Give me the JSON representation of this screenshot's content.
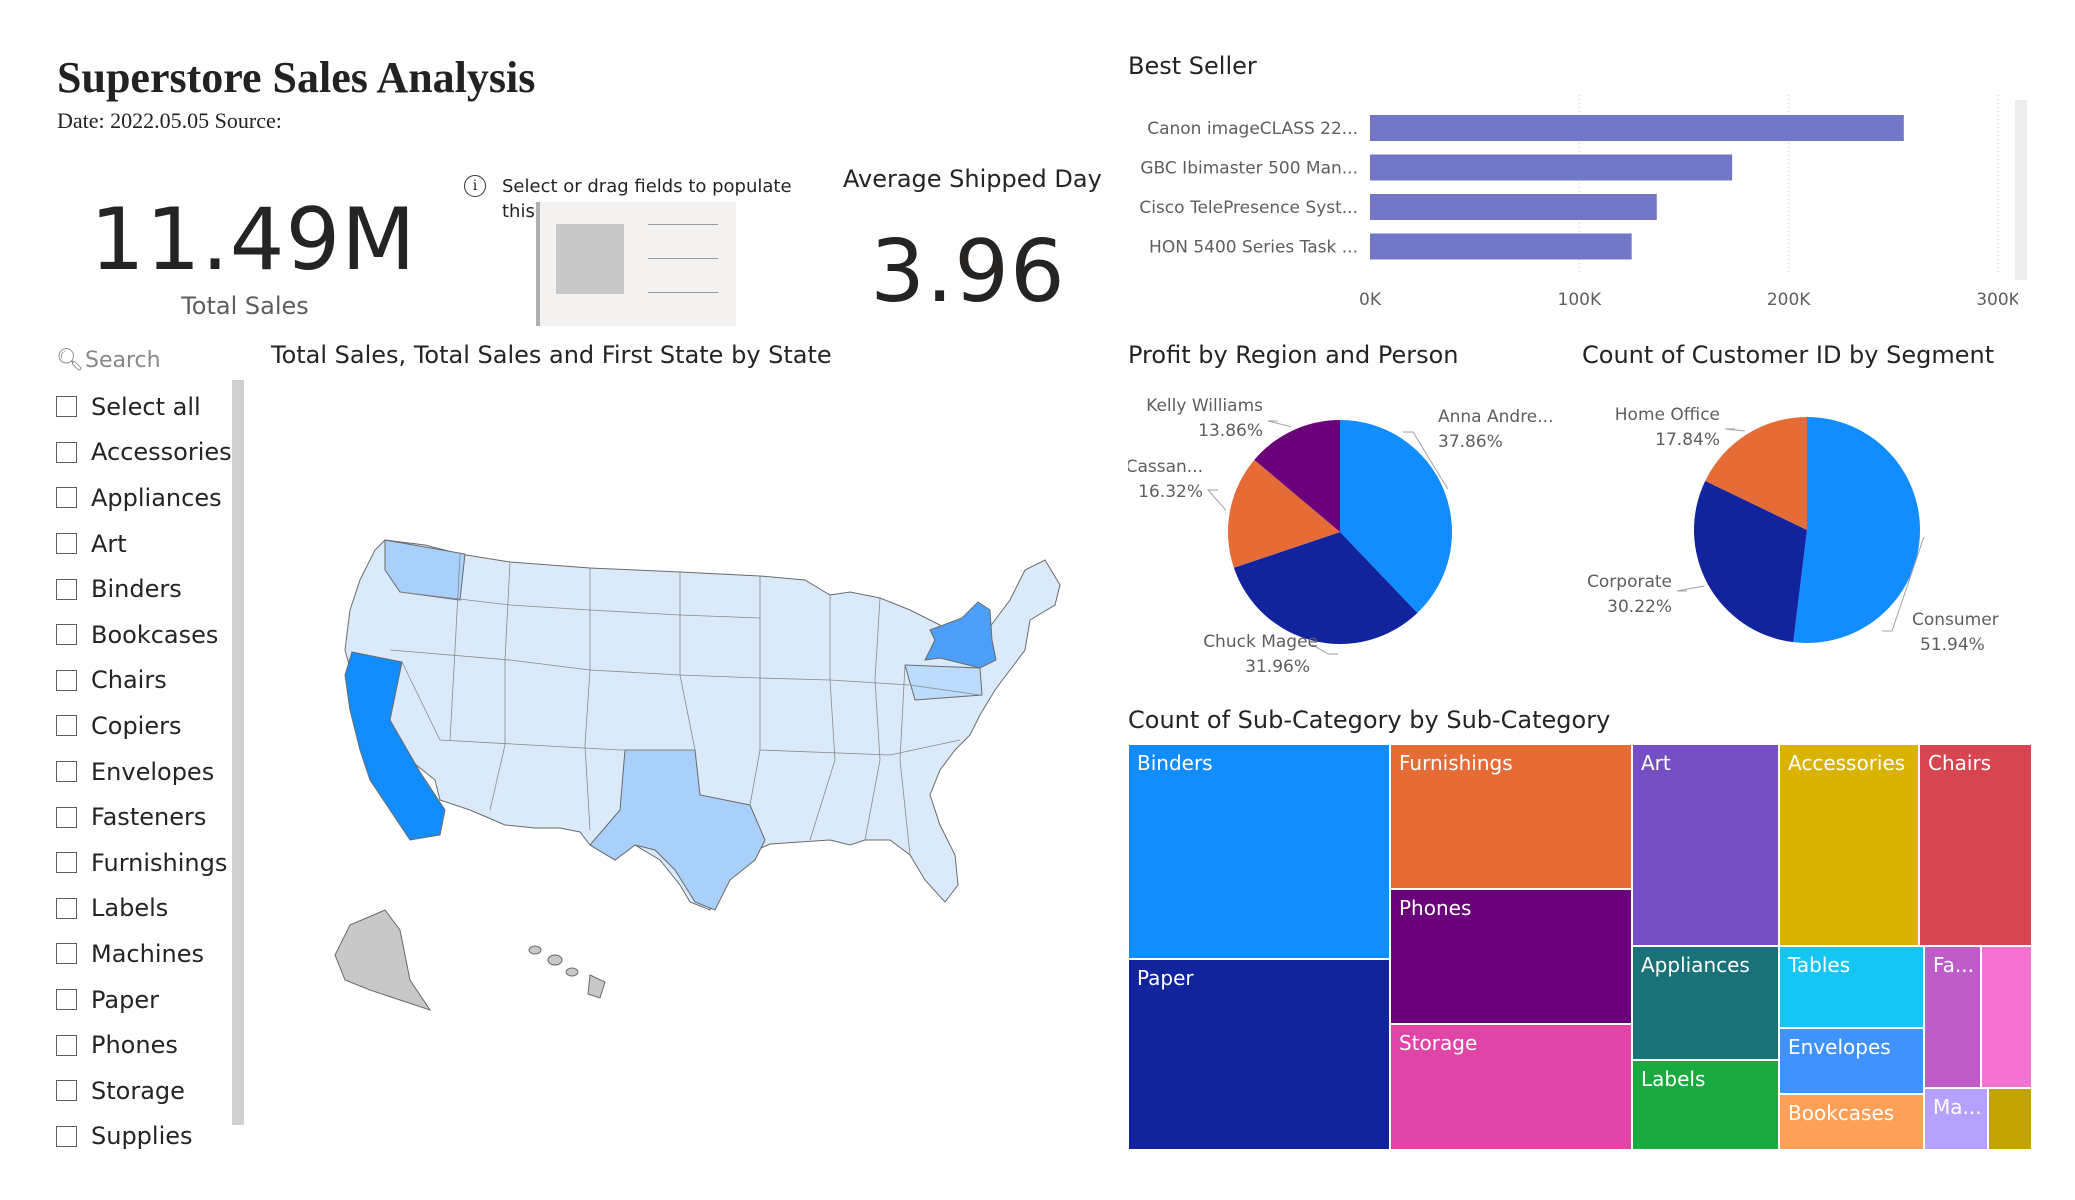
{
  "header": {
    "title": "Superstore Sales Analysis",
    "subtitle": "Date: 2022.05.05  Source:"
  },
  "kpis": {
    "total_sales_value": "11.49M",
    "total_sales_label": "Total Sales",
    "avg_shipped_title": "Average Shipped Day",
    "avg_shipped_value": "3.96"
  },
  "placeholder": {
    "message": "Select or drag fields to populate this visu",
    "icon": "info-icon"
  },
  "slicer": {
    "search_placeholder": "Search",
    "items": [
      "Select all",
      "Accessories",
      "Appliances",
      "Art",
      "Binders",
      "Bookcases",
      "Chairs",
      "Copiers",
      "Envelopes",
      "Fasteners",
      "Furnishings",
      "Labels",
      "Machines",
      "Paper",
      "Phones",
      "Storage",
      "Supplies"
    ]
  },
  "map": {
    "title": "Total Sales, Total Sales and First State by State"
  },
  "best_seller": {
    "title": "Best Seller",
    "chart_data": {
      "type": "bar",
      "orientation": "horizontal",
      "categories": [
        "Canon imageCLASS 22...",
        "GBC Ibimaster 500 Man...",
        "Cisco TelePresence Syst...",
        "HON 5400 Series Task ..."
      ],
      "values": [
        255000,
        173000,
        137000,
        125000
      ],
      "xlim": [
        0,
        300000
      ],
      "ticks": [
        "0K",
        "100K",
        "200K",
        "300K"
      ],
      "color": "#7177c6"
    }
  },
  "profit_pie": {
    "title": "Profit by Region and Person",
    "chart_data": {
      "type": "pie",
      "slices": [
        {
          "label": "Anna Andre...",
          "value": 37.86,
          "display": "37.86%",
          "color": "#118dff"
        },
        {
          "label": "Chuck Magee",
          "value": 31.96,
          "display": "31.96%",
          "color": "#12239e"
        },
        {
          "label": "Cassan...",
          "value": 16.32,
          "display": "16.32%",
          "color": "#e66c37"
        },
        {
          "label": "Kelly Williams",
          "value": 13.86,
          "display": "13.86%",
          "color": "#6b007b"
        }
      ]
    }
  },
  "segment_pie": {
    "title": "Count of Customer ID by Segment",
    "chart_data": {
      "type": "pie",
      "slices": [
        {
          "label": "Consumer",
          "value": 51.94,
          "display": "51.94%",
          "color": "#118dff"
        },
        {
          "label": "Corporate",
          "value": 30.22,
          "display": "30.22%",
          "color": "#12239e"
        },
        {
          "label": "Home Office",
          "value": 17.84,
          "display": "17.84%",
          "color": "#e66c37"
        }
      ]
    }
  },
  "treemap": {
    "title": "Count of Sub-Category by Sub-Category",
    "labels": [
      "Binders",
      "Paper",
      "Furnishings",
      "Phones",
      "Storage",
      "Art",
      "Accessories",
      "Chairs",
      "Appliances",
      "Labels",
      "Tables",
      "Envelopes",
      "Bookcases",
      "Fa...",
      "Ma..."
    ],
    "colors": [
      "#118dff",
      "#12239e",
      "#e66c37",
      "#6b007b",
      "#e044a7",
      "#744ec2",
      "#d9b300",
      "#d64550",
      "#197278",
      "#1aab40",
      "#15c6f4",
      "#4092ff",
      "#ffa058",
      "#be5dc9",
      "#f472d0",
      "#b5a1ff",
      "#c4a200"
    ]
  }
}
